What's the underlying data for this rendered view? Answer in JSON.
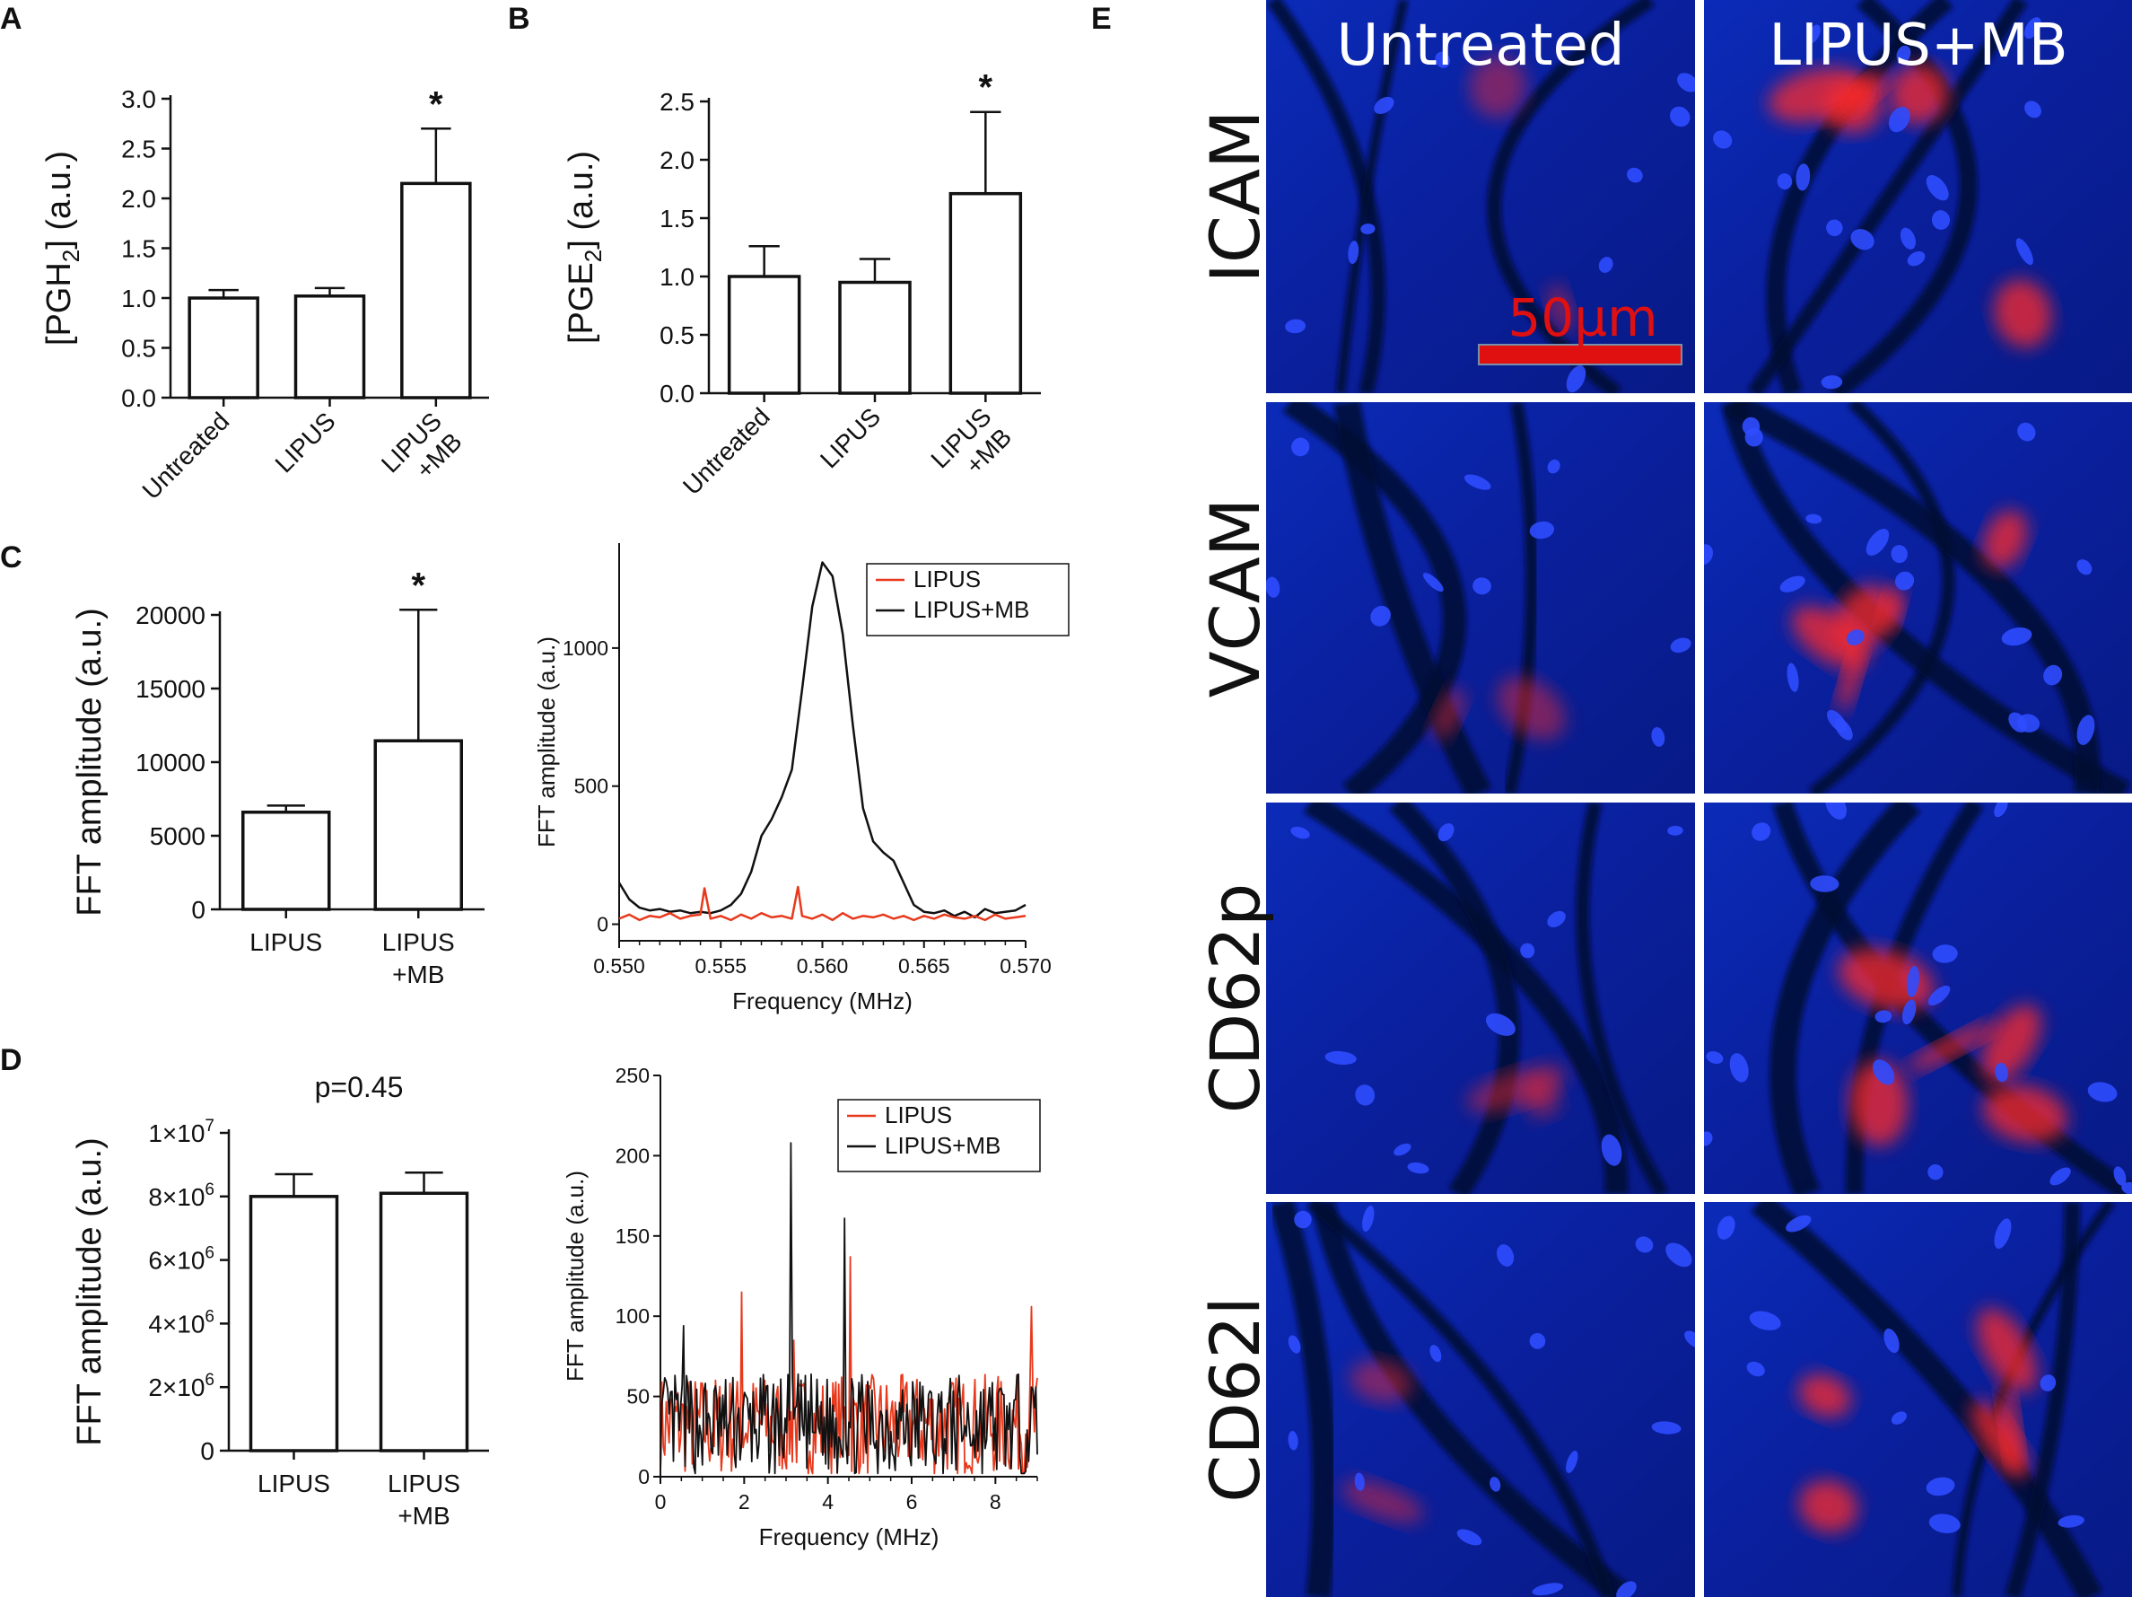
{
  "panels": {
    "A": "A",
    "B": "B",
    "C": "C",
    "D": "D",
    "E": "E"
  },
  "chart_data": [
    {
      "id": "A",
      "type": "bar",
      "ylabel_main": "[PGH",
      "ylabel_sub": "2",
      "ylabel_tail": "] (a.u.)",
      "categories": [
        [
          "Untreated"
        ],
        [
          "LIPUS"
        ],
        [
          "LIPUS",
          "+MB"
        ]
      ],
      "values": [
        1.0,
        1.02,
        2.15
      ],
      "errors": [
        0.08,
        0.08,
        0.55
      ],
      "ylim": [
        0,
        3.0
      ],
      "yticks": [
        "0.0",
        "0.5",
        "1.0",
        "1.5",
        "2.0",
        "2.5",
        "3.0"
      ],
      "ytick_values": [
        0,
        0.5,
        1.0,
        1.5,
        2.0,
        2.5,
        3.0
      ],
      "significance": [
        "",
        "",
        "*"
      ],
      "xlabel_rotated": true
    },
    {
      "id": "B",
      "type": "bar",
      "ylabel_main": "[PGE",
      "ylabel_sub": "2",
      "ylabel_tail": "] (a.u.)",
      "categories": [
        [
          "Untreated"
        ],
        [
          "LIPUS"
        ],
        [
          "LIPUS",
          "+MB"
        ]
      ],
      "values": [
        1.0,
        0.95,
        1.71
      ],
      "errors": [
        0.26,
        0.2,
        0.7
      ],
      "ylim": [
        0,
        2.5
      ],
      "yticks": [
        "0.0",
        "0.5",
        "1.0",
        "1.5",
        "2.0",
        "2.5"
      ],
      "ytick_values": [
        0,
        0.5,
        1.0,
        1.5,
        2.0,
        2.5
      ],
      "significance": [
        "",
        "",
        "*"
      ],
      "xlabel_rotated": true
    },
    {
      "id": "C-bar",
      "type": "bar",
      "ylabel": "FFT amplitude (a.u.)",
      "categories": [
        [
          "LIPUS"
        ],
        [
          "LIPUS",
          "+MB"
        ]
      ],
      "values": [
        6600,
        11450
      ],
      "errors": [
        450,
        8900
      ],
      "ylim": [
        0,
        20000
      ],
      "yticks": [
        "0",
        "5000",
        "10000",
        "15000",
        "20000"
      ],
      "ytick_values": [
        0,
        5000,
        10000,
        15000,
        20000
      ],
      "significance": [
        "",
        "*"
      ]
    },
    {
      "id": "C-line",
      "type": "line",
      "xlabel": "Frequency (MHz)",
      "ylabel": "FFT amplitude (a.u.)",
      "xlim": [
        0.55,
        0.57
      ],
      "ylim": [
        -60,
        1380
      ],
      "xticks": [
        "0.550",
        "0.555",
        "0.560",
        "0.565",
        "0.570"
      ],
      "xtick_values": [
        0.55,
        0.555,
        0.56,
        0.565,
        0.57
      ],
      "yticks": [
        "0",
        "500",
        "1000"
      ],
      "ytick_values": [
        0,
        500,
        1000
      ],
      "legend": [
        "LIPUS",
        "LIPUS+MB"
      ],
      "legend_position": "top-right",
      "series": [
        {
          "name": "LIPUS+MB",
          "color": "#111111",
          "x": [
            0.55,
            0.5505,
            0.551,
            0.5515,
            0.552,
            0.5525,
            0.553,
            0.5535,
            0.554,
            0.5545,
            0.555,
            0.5555,
            0.556,
            0.5565,
            0.557,
            0.5575,
            0.558,
            0.5585,
            0.559,
            0.5595,
            0.56,
            0.5605,
            0.561,
            0.5615,
            0.562,
            0.5625,
            0.563,
            0.5635,
            0.564,
            0.5645,
            0.565,
            0.5655,
            0.566,
            0.5665,
            0.567,
            0.5675,
            0.568,
            0.5685,
            0.569,
            0.5695,
            0.57
          ],
          "y": [
            150,
            90,
            60,
            50,
            55,
            45,
            50,
            40,
            45,
            40,
            50,
            70,
            110,
            190,
            320,
            380,
            460,
            560,
            850,
            1150,
            1310,
            1260,
            1050,
            720,
            420,
            300,
            260,
            230,
            150,
            70,
            45,
            40,
            50,
            30,
            45,
            25,
            55,
            40,
            45,
            50,
            70
          ]
        },
        {
          "name": "LIPUS",
          "color": "#e8391c",
          "x": [
            0.55,
            0.5505,
            0.551,
            0.5515,
            0.552,
            0.5525,
            0.553,
            0.5535,
            0.554,
            0.5542,
            0.5545,
            0.555,
            0.5555,
            0.556,
            0.5565,
            0.557,
            0.5575,
            0.558,
            0.5585,
            0.5588,
            0.559,
            0.5595,
            0.56,
            0.5605,
            0.561,
            0.5615,
            0.562,
            0.5625,
            0.563,
            0.5635,
            0.564,
            0.5645,
            0.565,
            0.5655,
            0.566,
            0.5665,
            0.567,
            0.5675,
            0.568,
            0.5685,
            0.569,
            0.5695,
            0.57
          ],
          "y": [
            20,
            35,
            15,
            30,
            25,
            40,
            20,
            30,
            35,
            130,
            20,
            30,
            15,
            35,
            20,
            40,
            25,
            30,
            20,
            135,
            30,
            20,
            35,
            15,
            40,
            20,
            30,
            25,
            35,
            20,
            30,
            15,
            30,
            20,
            35,
            25,
            20,
            30,
            15,
            35,
            20,
            25,
            30
          ]
        }
      ]
    },
    {
      "id": "D-bar",
      "type": "bar",
      "ylabel": "FFT amplitude (a.u.)",
      "categories": [
        [
          "LIPUS"
        ],
        [
          "LIPUS",
          "+MB"
        ]
      ],
      "values": [
        8000000,
        8100000
      ],
      "errors": [
        700000,
        650000
      ],
      "ylim": [
        0,
        10000000
      ],
      "yticks": [
        [
          "0",
          ""
        ],
        [
          "2×10",
          "6"
        ],
        [
          "4×10",
          "6"
        ],
        [
          "6×10",
          "6"
        ],
        [
          "8×10",
          "6"
        ],
        [
          "1×10",
          "7"
        ]
      ],
      "ytick_values": [
        0,
        2000000,
        4000000,
        6000000,
        8000000,
        10000000
      ],
      "annotation": "p=0.45"
    },
    {
      "id": "D-line",
      "type": "line",
      "xlabel": "Frequency (MHz)",
      "ylabel": "FFT amplitude (a.u.)",
      "xlim": [
        0,
        9
      ],
      "ylim": [
        0,
        250
      ],
      "xticks": [
        "0",
        "2",
        "4",
        "6",
        "8"
      ],
      "xtick_values": [
        0,
        2,
        4,
        6,
        8
      ],
      "yticks": [
        "0",
        "50",
        "100",
        "150",
        "200",
        "250"
      ],
      "ytick_values": [
        0,
        50,
        100,
        150,
        200,
        250
      ],
      "legend": [
        "LIPUS",
        "LIPUS+MB"
      ],
      "legend_position": "top-right",
      "series": [
        {
          "name": "LIPUS",
          "color": "#e8391c",
          "noise_base": 32,
          "noise_amp": 32,
          "seed": 7,
          "n": 260,
          "spikes": [
            [
              1.95,
              115
            ],
            [
              4.55,
              137
            ],
            [
              8.85,
              106
            ],
            [
              3.2,
              85
            ]
          ]
        },
        {
          "name": "LIPUS+MB",
          "color": "#111111",
          "noise_base": 32,
          "noise_amp": 32,
          "seed": 13,
          "n": 260,
          "spikes": [
            [
              3.1,
              208
            ],
            [
              4.4,
              161
            ],
            [
              0.55,
              94
            ]
          ]
        }
      ]
    }
  ],
  "micrograph": {
    "columns": [
      "Untreated",
      "LIPUS+MB"
    ],
    "rows": [
      "ICAM",
      "VCAM",
      "CD62p",
      "CD62l"
    ],
    "scale_bar": "50µm",
    "colors": {
      "background": "#0a1f9c",
      "nuclei": "#2f4dff",
      "stain": "#ff2a2a",
      "gaps": "#050a30"
    }
  }
}
